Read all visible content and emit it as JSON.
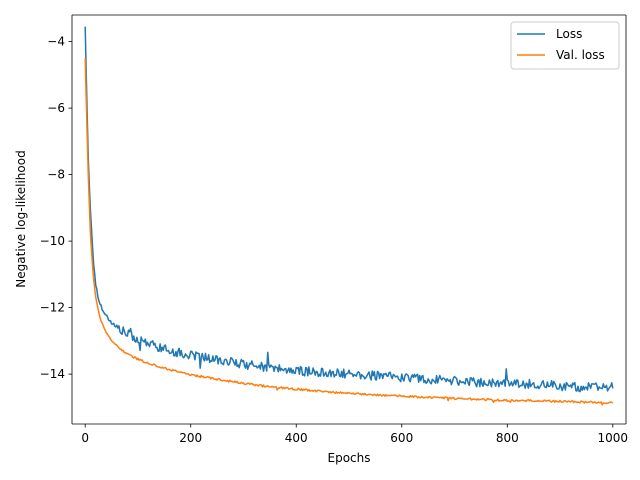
{
  "chart_data": {
    "type": "line",
    "title": "",
    "xlabel": "Epochs",
    "ylabel": "Negative log-likelihood",
    "xlim": [
      -25,
      1025
    ],
    "ylim": [
      -15.5,
      -3.2
    ],
    "xticks": [
      0,
      200,
      400,
      600,
      800,
      1000
    ],
    "yticks": [
      -14,
      -12,
      -10,
      -8,
      -6,
      -4
    ],
    "xtick_labels": [
      "0",
      "200",
      "400",
      "600",
      "800",
      "1000"
    ],
    "ytick_labels": [
      "−14",
      "−12",
      "−10",
      "−8",
      "−6",
      "−4"
    ],
    "grid": false,
    "legend_position": "top-right",
    "series": [
      {
        "name": "Loss",
        "color": "#1f77b4",
        "x": [
          0,
          3,
          6,
          10,
          15,
          20,
          25,
          30,
          40,
          50,
          60,
          80,
          100,
          125,
          150,
          175,
          200,
          250,
          300,
          350,
          400,
          450,
          500,
          550,
          600,
          650,
          700,
          750,
          800,
          850,
          900,
          950,
          1000
        ],
        "y": [
          -3.55,
          -5.7,
          -7.6,
          -9.1,
          -10.5,
          -11.3,
          -11.75,
          -11.95,
          -12.25,
          -12.45,
          -12.6,
          -12.8,
          -12.95,
          -13.1,
          -13.25,
          -13.35,
          -13.45,
          -13.55,
          -13.7,
          -13.8,
          -13.9,
          -13.95,
          -14.0,
          -14.05,
          -14.1,
          -14.15,
          -14.2,
          -14.25,
          -14.3,
          -14.3,
          -14.35,
          -14.4,
          -14.4
        ],
        "noise": 0.14
      },
      {
        "name": "Val. loss",
        "color": "#ff7f0e",
        "x": [
          0,
          3,
          6,
          10,
          15,
          20,
          25,
          30,
          40,
          50,
          60,
          80,
          100,
          125,
          150,
          175,
          200,
          250,
          300,
          350,
          400,
          450,
          500,
          550,
          600,
          650,
          700,
          750,
          800,
          850,
          900,
          950,
          1000
        ],
        "y": [
          -4.5,
          -6.4,
          -8.1,
          -9.8,
          -11.0,
          -11.7,
          -12.1,
          -12.4,
          -12.75,
          -13.0,
          -13.15,
          -13.4,
          -13.55,
          -13.7,
          -13.82,
          -13.92,
          -14.02,
          -14.15,
          -14.28,
          -14.38,
          -14.45,
          -14.52,
          -14.58,
          -14.62,
          -14.66,
          -14.7,
          -14.73,
          -14.76,
          -14.79,
          -14.8,
          -14.82,
          -14.84,
          -14.86
        ],
        "noise": 0.03
      }
    ]
  }
}
